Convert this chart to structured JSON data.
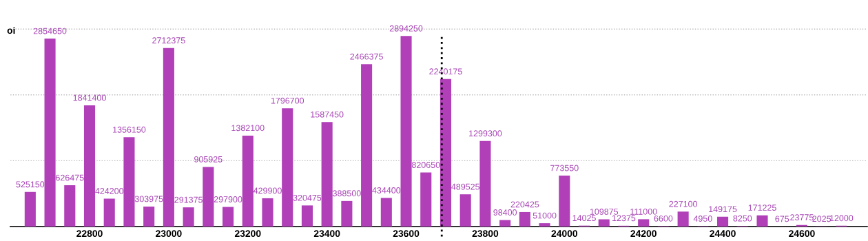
{
  "chart_data": {
    "type": "bar",
    "ylabel": "oi",
    "x": [
      22650,
      22700,
      22750,
      22800,
      22850,
      22900,
      22950,
      23000,
      23050,
      23100,
      23150,
      23200,
      23250,
      23300,
      23350,
      23400,
      23450,
      23500,
      23550,
      23600,
      23650,
      23700,
      23750,
      23800,
      23850,
      23900,
      23950,
      24000,
      24050,
      24100,
      24150,
      24200,
      24250,
      24300,
      24350,
      24400,
      24450,
      24500,
      24550,
      24600,
      24650,
      24700
    ],
    "values": [
      525150,
      2854650,
      626475,
      1841400,
      424200,
      1356150,
      303975,
      2712375,
      291375,
      905925,
      297900,
      1382100,
      429900,
      1796700,
      320475,
      1587450,
      388500,
      2466375,
      434400,
      2894250,
      820650,
      2240175,
      489525,
      1299300,
      98400,
      220425,
      51000,
      773550,
      14025,
      109875,
      12375,
      111000,
      6600,
      227100,
      4950,
      149175,
      8250,
      171225,
      675,
      23775,
      2025,
      12000
    ],
    "color": "#b03fb8",
    "data_labels": true,
    "xlim": [
      22600,
      24765
    ],
    "xticks": [
      22800,
      23000,
      23200,
      23400,
      23600,
      23800,
      24000,
      24200,
      24400,
      24600
    ],
    "tick_labels": "x",
    "ref_lines": [
      {
        "axis": "x",
        "value": 23690,
        "label": null,
        "color": "#000000",
        "line_style": "dotted"
      },
      {
        "axis": "y",
        "value": 1000000,
        "label": null,
        "color": "#bbbbbb",
        "line_style": "dotted"
      },
      {
        "axis": "y",
        "value": 2000000,
        "label": null,
        "color": "#bbbbbb",
        "line_style": "dotted"
      },
      {
        "axis": "y",
        "value": 3000000,
        "label": null,
        "color": "#bbbbbb",
        "line_style": "dotted"
      }
    ]
  }
}
